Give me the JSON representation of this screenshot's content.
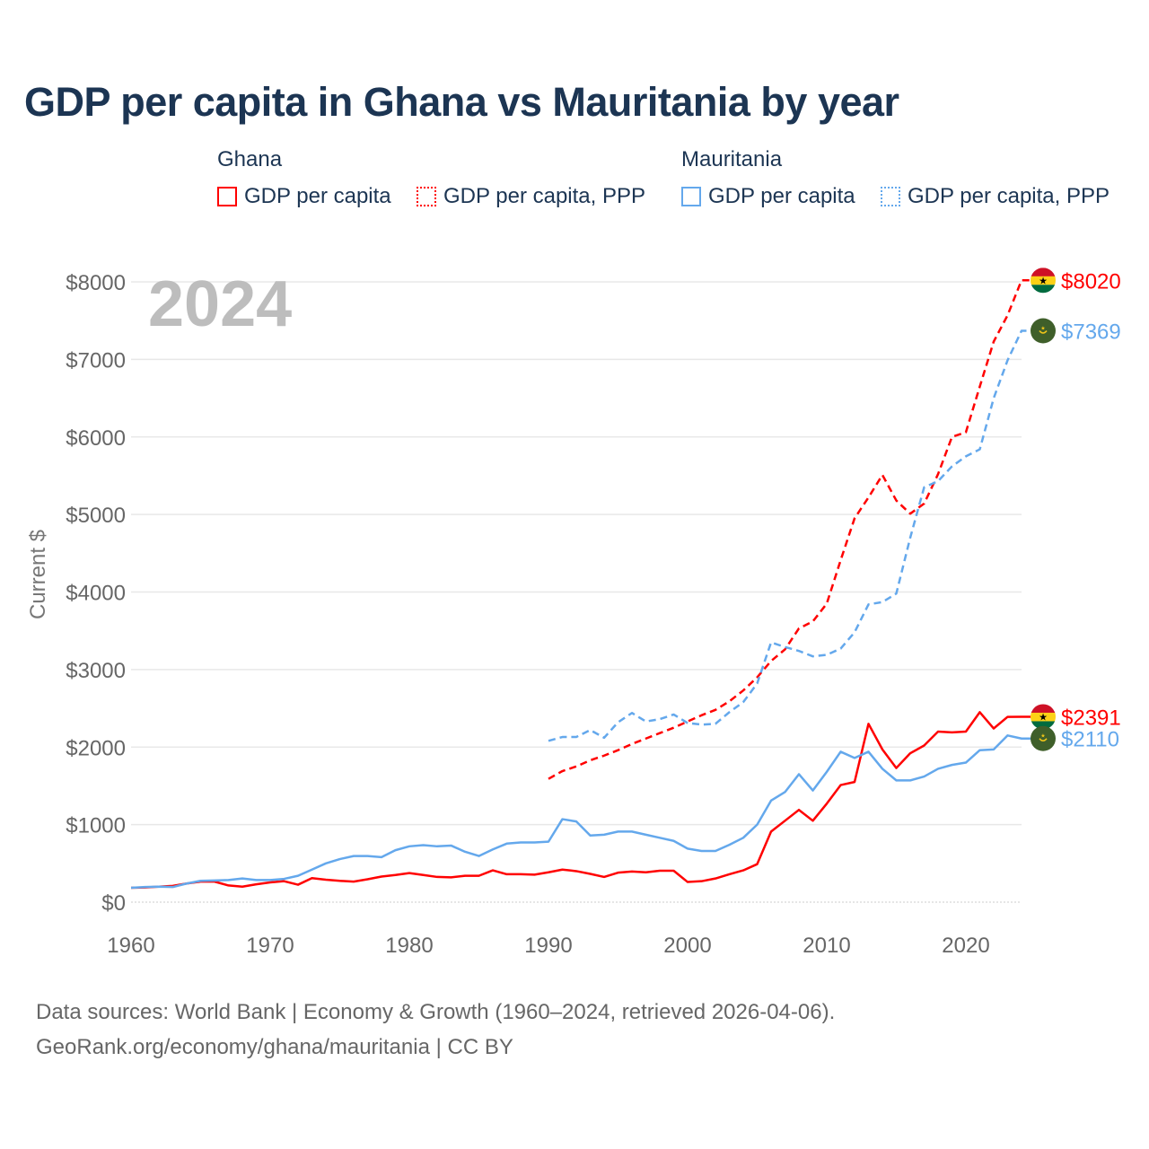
{
  "title": "GDP per capita in Ghana vs Mauritania by year",
  "legend": {
    "groups": [
      {
        "name": "Ghana",
        "items": [
          "GDP per capita",
          "GDP per capita, PPP"
        ],
        "color": "#ff0000"
      },
      {
        "name": "Mauritania",
        "items": [
          "GDP per capita",
          "GDP per capita, PPP"
        ],
        "color": "#64a8ec"
      }
    ]
  },
  "year_label": "2024",
  "footer": {
    "line1": "Data sources: World Bank | Economy & Growth (1960–2024, retrieved 2026-04-06).",
    "line2": "GeoRank.org/economy/ghana/mauritania | CC BY"
  },
  "chart_data": {
    "type": "line",
    "title": "GDP per capita in Ghana vs Mauritania by year",
    "xlabel": "",
    "ylabel": "Current $",
    "xlim": [
      1960,
      2024
    ],
    "ylim": [
      0,
      8000
    ],
    "xticks": [
      "1960",
      "1970",
      "1980",
      "1990",
      "2000",
      "2010",
      "2020"
    ],
    "yticks": [
      "$0",
      "$1000",
      "$2000",
      "$3000",
      "$4000",
      "$5000",
      "$6000",
      "$7000",
      "$8000"
    ],
    "grid": true,
    "series": [
      {
        "name": "Ghana GDP per capita",
        "color": "#ff0000",
        "dash": false,
        "start": 1960,
        "end_label": "$2391",
        "flag": "ghana",
        "values": [
          185,
          190,
          200,
          210,
          240,
          265,
          265,
          215,
          200,
          230,
          255,
          270,
          225,
          310,
          290,
          275,
          265,
          295,
          330,
          350,
          375,
          350,
          325,
          320,
          340,
          340,
          410,
          360,
          360,
          355,
          385,
          420,
          400,
          365,
          325,
          380,
          395,
          385,
          405,
          405,
          260,
          270,
          305,
          360,
          410,
          490,
          910,
          1050,
          1190,
          1050,
          1270,
          1510,
          1550,
          2300,
          1970,
          1730,
          1920,
          2020,
          2200,
          2190,
          2200,
          2450,
          2240,
          2390,
          2391
        ]
      },
      {
        "name": "Ghana GDP per capita, PPP",
        "color": "#ff0000",
        "dash": true,
        "start": 1990,
        "end_label": "$8020",
        "flag": "ghana",
        "values": [
          1590,
          1690,
          1750,
          1830,
          1890,
          1960,
          2040,
          2110,
          2180,
          2250,
          2330,
          2410,
          2480,
          2590,
          2730,
          2900,
          3110,
          3260,
          3530,
          3620,
          3850,
          4410,
          4950,
          5220,
          5510,
          5180,
          5010,
          5140,
          5520,
          6000,
          6060,
          6650,
          7230,
          7570,
          8020
        ]
      },
      {
        "name": "Mauritania GDP per capita",
        "color": "#64a8ec",
        "dash": false,
        "start": 1960,
        "end_label": "$2110",
        "flag": "mauritania",
        "values": [
          185,
          195,
          200,
          195,
          240,
          275,
          280,
          285,
          305,
          285,
          285,
          300,
          340,
          420,
          500,
          555,
          595,
          595,
          580,
          670,
          720,
          735,
          720,
          730,
          650,
          595,
          680,
          755,
          770,
          770,
          780,
          1070,
          1040,
          860,
          870,
          910,
          910,
          870,
          830,
          790,
          690,
          660,
          660,
          740,
          830,
          1000,
          1310,
          1420,
          1650,
          1440,
          1680,
          1940,
          1860,
          1940,
          1720,
          1570,
          1570,
          1620,
          1720,
          1770,
          1800,
          1960,
          1970,
          2150,
          2110
        ]
      },
      {
        "name": "Mauritania GDP per capita, PPP",
        "color": "#64a8ec",
        "dash": true,
        "start": 1990,
        "end_label": "$7369",
        "flag": "mauritania",
        "values": [
          2080,
          2130,
          2130,
          2220,
          2120,
          2320,
          2440,
          2330,
          2360,
          2420,
          2310,
          2290,
          2300,
          2450,
          2580,
          2820,
          3350,
          3290,
          3240,
          3170,
          3190,
          3270,
          3480,
          3840,
          3870,
          3980,
          4700,
          5350,
          5430,
          5620,
          5750,
          5840,
          6500,
          6990,
          7369
        ]
      }
    ]
  }
}
